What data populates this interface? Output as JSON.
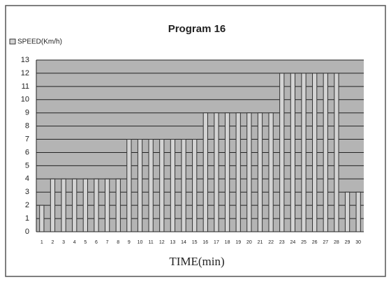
{
  "chart_data": {
    "type": "bar",
    "title": "Program 16",
    "x_label": "TIME(min)",
    "categories": [
      "1",
      "2",
      "3",
      "4",
      "5",
      "6",
      "7",
      "8",
      "9",
      "10",
      "11",
      "12",
      "13",
      "14",
      "15",
      "16",
      "17",
      "18",
      "19",
      "20",
      "21",
      "22",
      "23",
      "24",
      "25",
      "26",
      "27",
      "28",
      "29",
      "30"
    ],
    "series": [
      {
        "name": "SPEED(Km/h)",
        "color": "#d4d4d4",
        "values": [
          2,
          4,
          4,
          4,
          4,
          4,
          4,
          4,
          7,
          7,
          7,
          7,
          7,
          7,
          7,
          9,
          9,
          9,
          9,
          9,
          9,
          9,
          12,
          12,
          12,
          12,
          12,
          12,
          3,
          3
        ]
      }
    ],
    "ylim": [
      0,
      13
    ],
    "yticks": [
      0,
      1,
      2,
      3,
      4,
      5,
      6,
      7,
      8,
      9,
      10,
      11,
      12,
      13
    ],
    "grid": true
  }
}
